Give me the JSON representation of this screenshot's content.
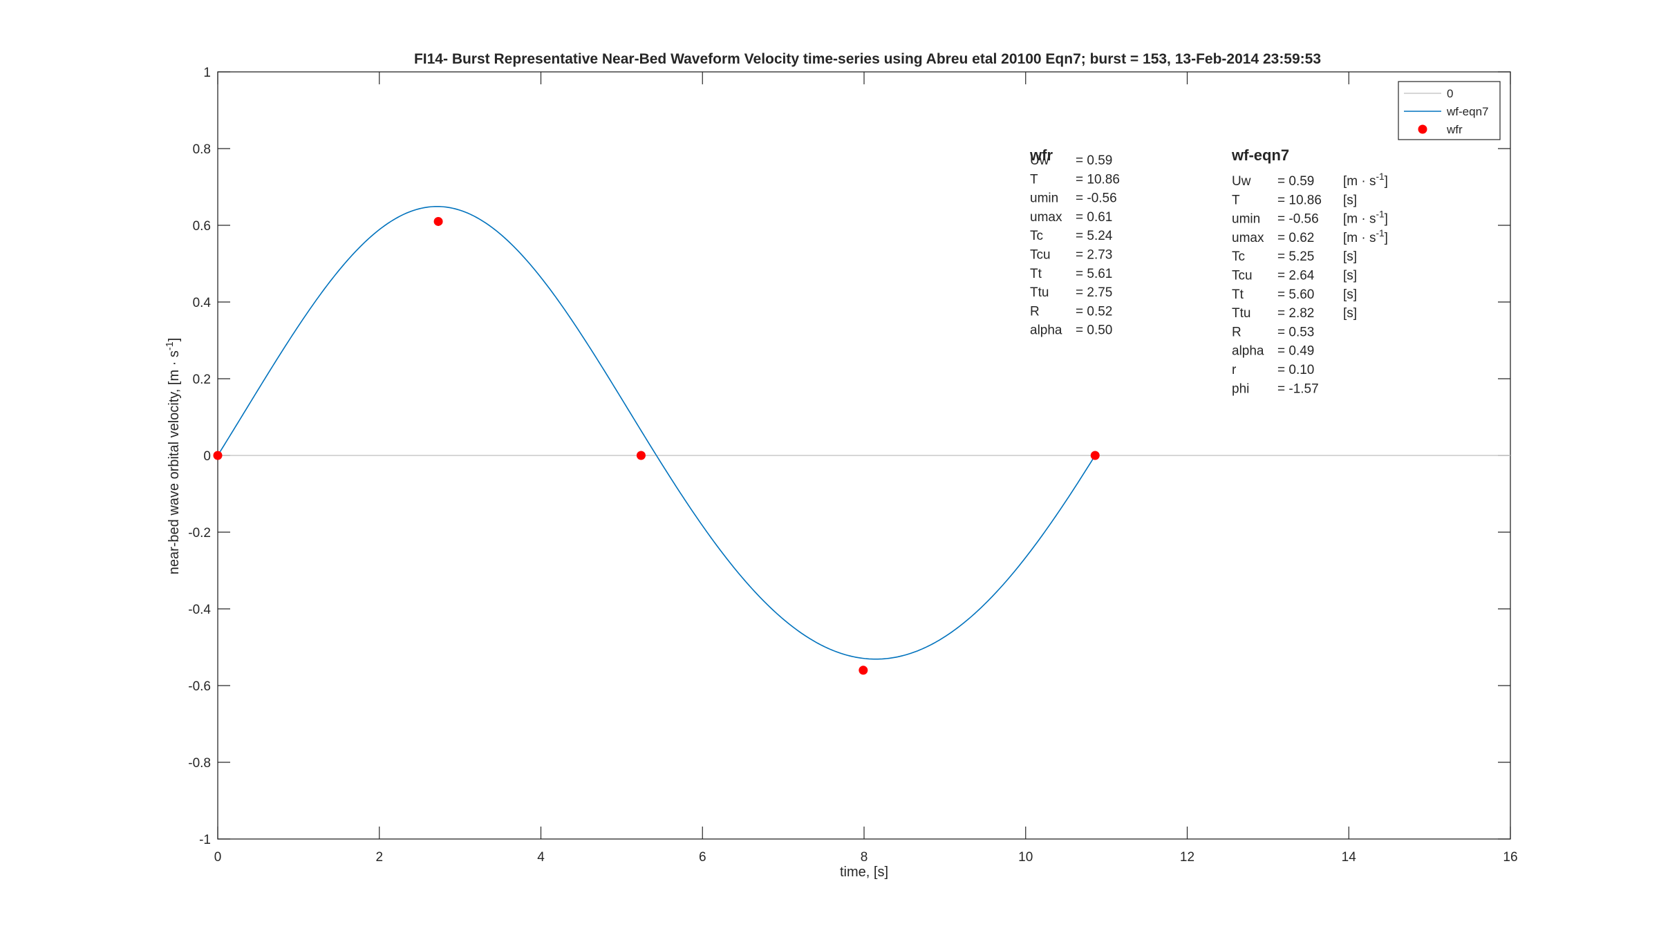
{
  "chart_data": {
    "type": "line",
    "title": "FI14- Burst Representative Near-Bed Waveform Velocity time-series using Abreu etal 20100 Eqn7; burst = 153, 13-Feb-2014 23:59:53",
    "xlabel": "time, [s]",
    "ylabel": "near-bed wave orbital velocity, [m · s-1]",
    "xlim": [
      0,
      16
    ],
    "ylim": [
      -1,
      1
    ],
    "xticks": [
      0,
      2,
      4,
      6,
      8,
      10,
      12,
      14,
      16
    ],
    "xtick_labels": [
      "0",
      "2",
      "4",
      "6",
      "8",
      "10",
      "12",
      "14",
      "16"
    ],
    "yticks": [
      1,
      0.8,
      0.6,
      0.4,
      0.2,
      0,
      -0.2,
      -0.4,
      -0.6,
      -0.8,
      -1
    ],
    "ytick_labels": [
      "1",
      "0.8",
      "0.6",
      "0.4",
      "0.2",
      "0",
      "-0.2",
      "-0.4",
      "-0.6",
      "-0.8",
      "-1"
    ],
    "grid": false,
    "legend_position": "top-right",
    "legend": [
      {
        "label": "0",
        "style": "line",
        "color": "#c8c8c8"
      },
      {
        "label": "wf-eqn7",
        "style": "line",
        "color": "#0072bd"
      },
      {
        "label": "wfr",
        "style": "marker",
        "color": "#ff0000"
      }
    ],
    "series": [
      {
        "name": "0",
        "color": "#c8c8c8",
        "x": [
          0,
          16
        ],
        "y": [
          0,
          0
        ]
      },
      {
        "name": "wf-eqn7",
        "color": "#0072bd",
        "model": "abreu-eqn7",
        "params": {
          "Uw": 0.59,
          "T": 10.86,
          "r": 0.1,
          "phi": -1.57
        },
        "x_range": [
          0,
          10.86
        ]
      },
      {
        "name": "wfr",
        "color": "#ff0000",
        "x": [
          0,
          2.73,
          5.24,
          7.99,
          10.86
        ],
        "y": [
          0,
          0.61,
          0,
          -0.56,
          0
        ]
      }
    ],
    "annotations": [
      {
        "id": "wfr",
        "heading": "wfr",
        "rows": [
          [
            "Uw",
            "=  0.59",
            ""
          ],
          [
            "T",
            "=   10.86",
            ""
          ],
          [
            "umin",
            "=   -0.56",
            ""
          ],
          [
            "umax",
            "=    0.61",
            ""
          ],
          [
            "Tc",
            "=    5.24",
            ""
          ],
          [
            "Tcu",
            "=    2.73",
            ""
          ],
          [
            "Tt",
            "=    5.61",
            ""
          ],
          [
            "Ttu",
            "=    2.75",
            ""
          ],
          [
            "R",
            "=    0.52",
            ""
          ],
          [
            "alpha",
            "=    0.50",
            ""
          ]
        ]
      },
      {
        "id": "wf-eqn7",
        "heading": "wf-eqn7",
        "rows": [
          [
            "Uw",
            "=  0.59",
            "[m · s-1]"
          ],
          [
            "T",
            "=  10.86",
            "[s]"
          ],
          [
            "umin",
            "=   -0.56",
            "[m · s-1]"
          ],
          [
            "umax",
            "=    0.62",
            "[m · s-1]"
          ],
          [
            "Tc",
            "=    5.25",
            "[s]"
          ],
          [
            "Tcu",
            "=    2.64",
            "[s]"
          ],
          [
            "Tt",
            "=    5.60",
            "[s]"
          ],
          [
            "Ttu",
            "=    2.82",
            "[s]"
          ],
          [
            "R",
            "=    0.53",
            ""
          ],
          [
            "alpha",
            "=    0.49",
            ""
          ],
          [
            "r",
            "=    0.10",
            ""
          ],
          [
            "phi",
            "=   -1.57",
            ""
          ]
        ]
      }
    ]
  }
}
